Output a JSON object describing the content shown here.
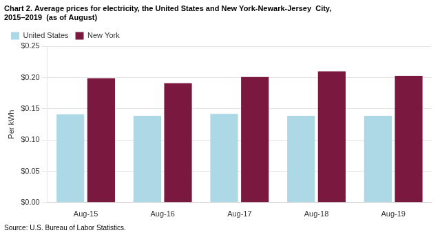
{
  "chart_data": {
    "type": "bar",
    "title": [
      "Chart 2. Average prices for electricity, the United States and New York-Newark-Jersey  City,",
      "2015–2019  (as of August)"
    ],
    "ylabel": "Per kWh",
    "source": "Source: U.S. Bureau of Labor Statistics.",
    "categories": [
      "Aug-15",
      "Aug-16",
      "Aug-17",
      "Aug-18",
      "Aug-19"
    ],
    "series": [
      {
        "name": "United States",
        "color": "#ADD8E6",
        "values": [
          0.141,
          0.139,
          0.142,
          0.139,
          0.139
        ]
      },
      {
        "name": "New York",
        "color": "#7B1840",
        "values": [
          0.199,
          0.191,
          0.201,
          0.21,
          0.203
        ]
      }
    ],
    "ylim": [
      0,
      0.25
    ],
    "yticks": [
      {
        "value": 0,
        "label": "$0.00"
      },
      {
        "value": 0.05,
        "label": "$0.05"
      },
      {
        "value": 0.1,
        "label": "$0.10"
      },
      {
        "value": 0.15,
        "label": "$0.15"
      },
      {
        "value": 0.2,
        "label": "$0.20"
      },
      {
        "value": 0.25,
        "label": "$0.25"
      }
    ],
    "grid": true,
    "legend": "upper left"
  }
}
